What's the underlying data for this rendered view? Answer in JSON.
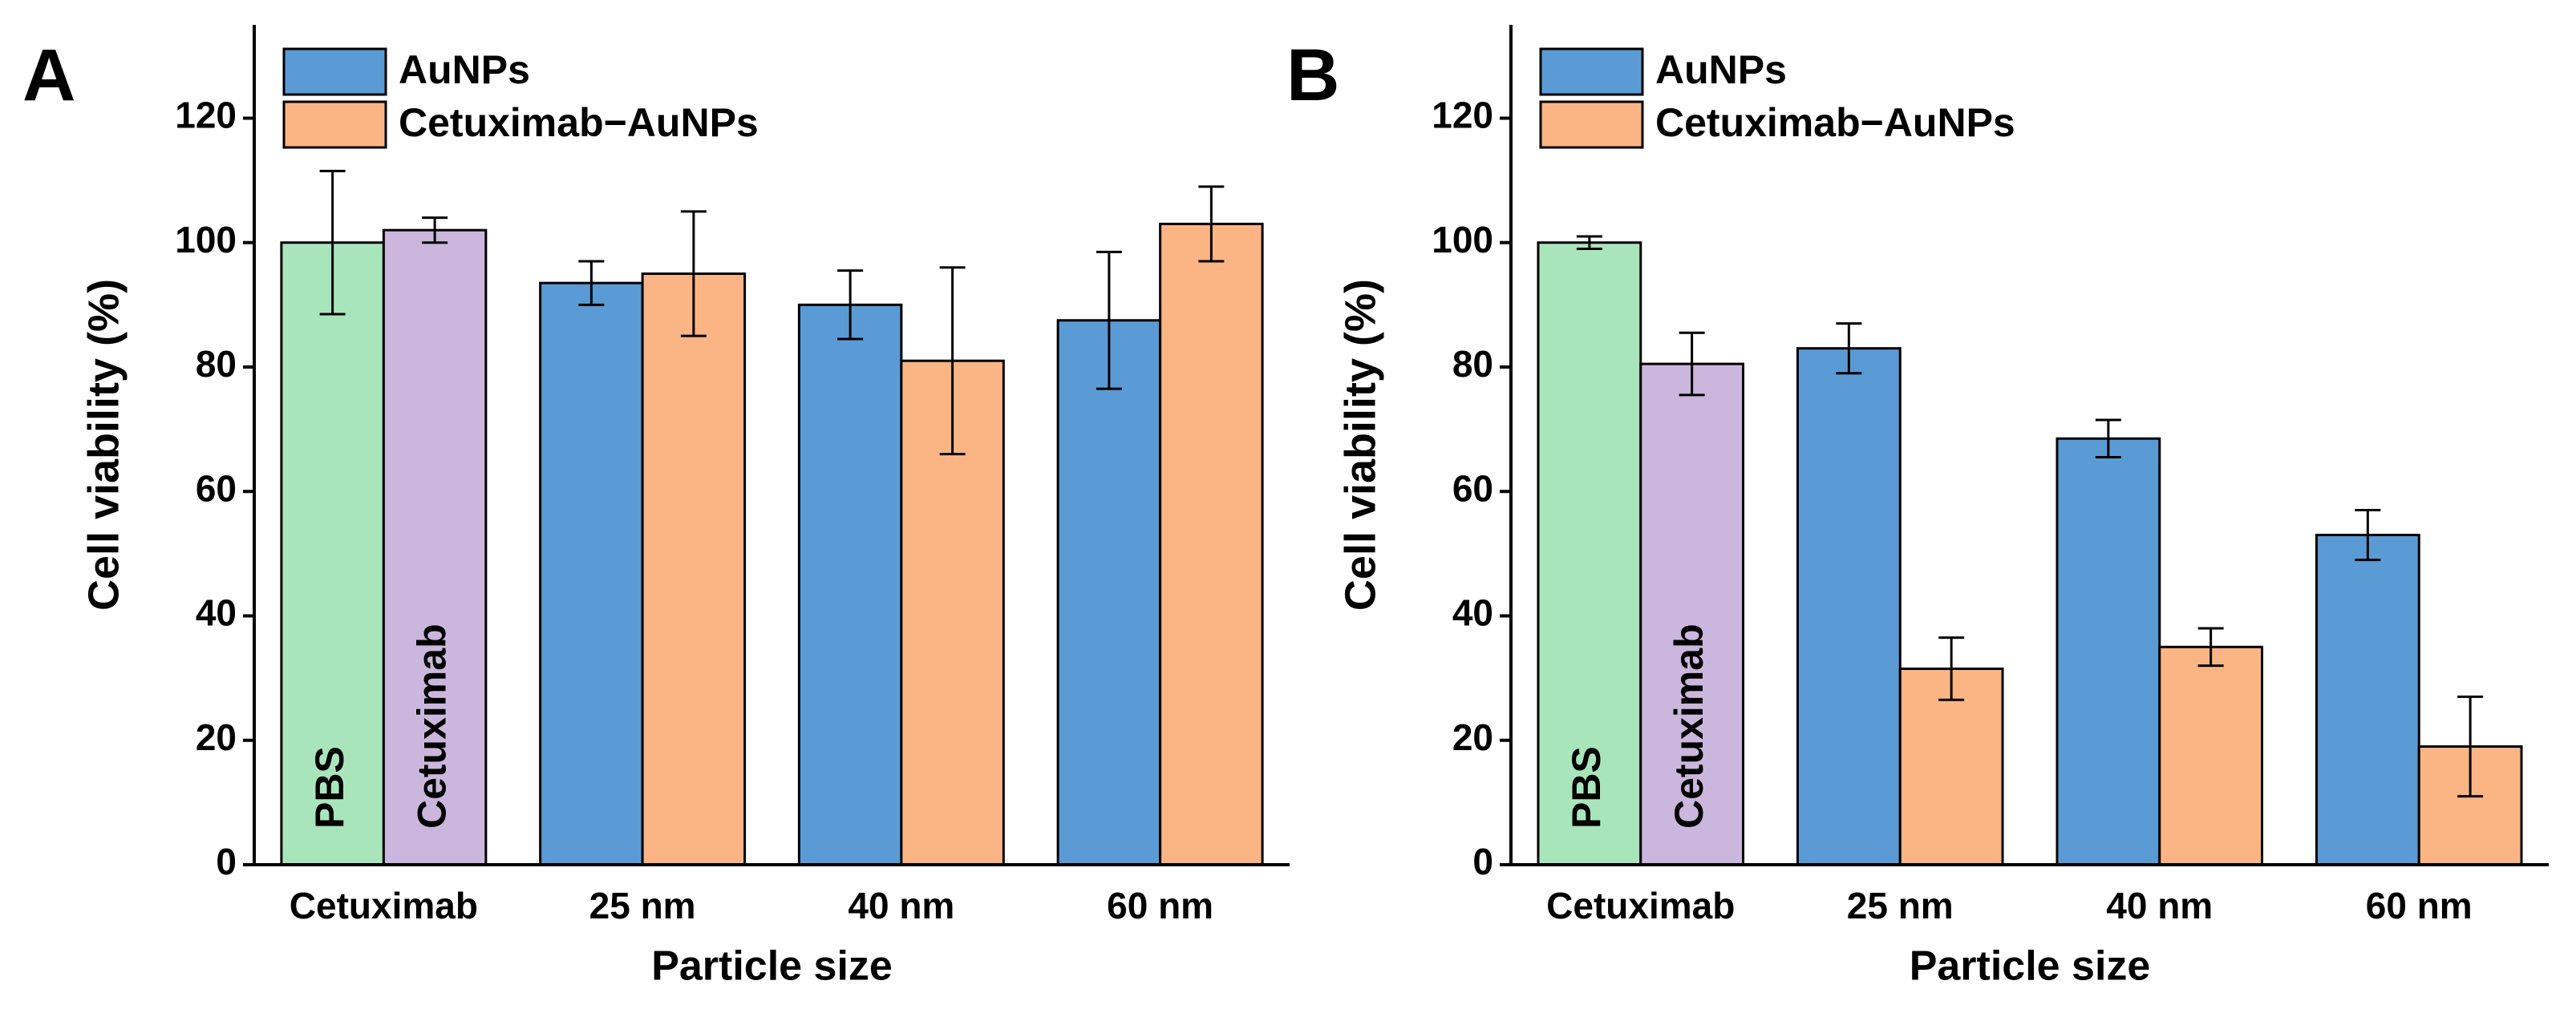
{
  "chart_data": [
    {
      "type": "bar",
      "panel": "A",
      "xlabel": "Particle size",
      "ylabel": "Cell viability (%)",
      "categories": [
        "Cetuximab",
        "25 nm",
        "40 nm",
        "60 nm"
      ],
      "controls": [
        {
          "name": "PBS",
          "color": "#a9e5bb",
          "value": 100,
          "error": 11.5
        },
        {
          "name": "Cetuximab",
          "color": "#cbb6dd",
          "value": 102,
          "error": 2
        }
      ],
      "series": [
        {
          "name": "AuNPs",
          "color": "#5b9bd5",
          "values": [
            null,
            93.5,
            90,
            87.5
          ],
          "errors": [
            null,
            3.5,
            5.5,
            11
          ]
        },
        {
          "name": "Cetuximab−AuNPs",
          "color": "#fbb585",
          "values": [
            null,
            95,
            81,
            103
          ],
          "errors": [
            null,
            10,
            15,
            6
          ]
        }
      ],
      "ylim": [
        0,
        135
      ],
      "yticks": [
        0,
        20,
        40,
        60,
        80,
        100,
        120
      ],
      "legend": "top-left"
    },
    {
      "type": "bar",
      "panel": "B",
      "xlabel": "Particle size",
      "ylabel": "Cell viability (%)",
      "categories": [
        "Cetuximab",
        "25 nm",
        "40 nm",
        "60 nm"
      ],
      "controls": [
        {
          "name": "PBS",
          "color": "#a9e5bb",
          "value": 100,
          "error": 1
        },
        {
          "name": "Cetuximab",
          "color": "#cbb6dd",
          "value": 80.5,
          "error": 5
        }
      ],
      "series": [
        {
          "name": "AuNPs",
          "color": "#5b9bd5",
          "values": [
            null,
            83,
            68.5,
            53
          ],
          "errors": [
            null,
            4,
            3,
            4
          ]
        },
        {
          "name": "Cetuximab−AuNPs",
          "color": "#fbb585",
          "values": [
            null,
            31.5,
            35,
            19
          ],
          "errors": [
            null,
            5,
            3,
            8
          ]
        }
      ],
      "ylim": [
        0,
        135
      ],
      "yticks": [
        0,
        20,
        40,
        60,
        80,
        100,
        120
      ],
      "legend": "top-left"
    }
  ]
}
